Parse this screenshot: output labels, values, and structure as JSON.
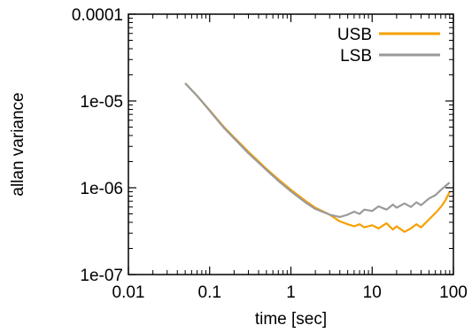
{
  "chart_data": {
    "type": "line",
    "title": "",
    "xlabel": "time [sec]",
    "ylabel": "allan variance",
    "xscale": "log",
    "yscale": "log",
    "xlim": [
      0.01,
      100
    ],
    "ylim": [
      1e-07,
      0.0001
    ],
    "grid": false,
    "legend_position": "top-right",
    "x_ticks": [
      {
        "value": 0.01,
        "label": "0.01"
      },
      {
        "value": 0.1,
        "label": "0.1"
      },
      {
        "value": 1,
        "label": "1"
      },
      {
        "value": 10,
        "label": "10"
      },
      {
        "value": 100,
        "label": "100"
      }
    ],
    "y_ticks": [
      {
        "value": 1e-07,
        "label": "1e-07"
      },
      {
        "value": 1e-06,
        "label": "1e-06"
      },
      {
        "value": 1e-05,
        "label": "1e-05"
      },
      {
        "value": 0.0001,
        "label": "0.0001"
      }
    ],
    "series": [
      {
        "name": "USB",
        "color": "#f5a000",
        "x": [
          0.05,
          0.07,
          0.1,
          0.15,
          0.2,
          0.3,
          0.5,
          0.7,
          1.0,
          1.5,
          2.0,
          3.0,
          4.0,
          5.0,
          6.0,
          7.0,
          8.0,
          10.0,
          12.0,
          15.0,
          18.0,
          20.0,
          25.0,
          30.0,
          35.0,
          40.0,
          50.0,
          60.0,
          70.0,
          80.0,
          90.0
        ],
        "y": [
          1.6e-05,
          1.15e-05,
          7.8e-06,
          5e-06,
          3.8e-06,
          2.6e-06,
          1.65e-06,
          1.25e-06,
          9.5e-07,
          7.1e-07,
          5.9e-07,
          4.9e-07,
          4.1e-07,
          3.8e-07,
          3.6e-07,
          3.8e-07,
          3.5e-07,
          3.7e-07,
          3.4e-07,
          3.9e-07,
          3.3e-07,
          3.6e-07,
          3.1e-07,
          3.4e-07,
          3.8e-07,
          3.5e-07,
          4.3e-07,
          5.1e-07,
          6e-07,
          7.2e-07,
          9e-07
        ]
      },
      {
        "name": "LSB",
        "color": "#9a9a9a",
        "x": [
          0.05,
          0.07,
          0.1,
          0.15,
          0.2,
          0.3,
          0.5,
          0.7,
          1.0,
          1.5,
          2.0,
          3.0,
          4.0,
          5.0,
          6.0,
          7.0,
          8.0,
          10.0,
          12.0,
          15.0,
          18.0,
          20.0,
          25.0,
          30.0,
          35.0,
          40.0,
          50.0,
          60.0,
          70.0,
          80.0,
          90.0
        ],
        "y": [
          1.6e-05,
          1.15e-05,
          7.7e-06,
          4.9e-06,
          3.7e-06,
          2.5e-06,
          1.6e-06,
          1.2e-06,
          9.1e-07,
          6.8e-07,
          5.7e-07,
          4.9e-07,
          4.6e-07,
          4.9e-07,
          5.3e-07,
          5e-07,
          5.6e-07,
          5.4e-07,
          6.1e-07,
          5.6e-07,
          6.4e-07,
          5.9e-07,
          6.6e-07,
          6e-07,
          6.8e-07,
          6.3e-07,
          7.5e-07,
          8.2e-07,
          9.4e-07,
          1.05e-06,
          1.15e-06
        ]
      }
    ]
  }
}
